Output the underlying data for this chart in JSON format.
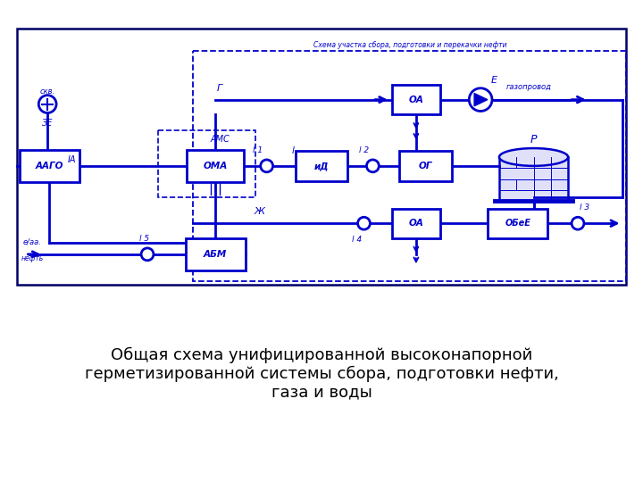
{
  "bg": "#ffffff",
  "dc": "#0000cc",
  "lw": 2.0,
  "title": "Общая схема унифицированной высоконапорной\nгерметизированной системы сбора, подготовки нефти,\nгаза и воды",
  "inner_title": "Схема участка сбора, подготовки и перекачки нефти",
  "labels": {
    "agzu": "ААГО",
    "oma": "ОМА",
    "id": "иД",
    "og": "ОГ",
    "sa_top": "ОА",
    "sa_bot": "ОА",
    "avn": "АБМ",
    "ove": "ОБеЕ",
    "well": "скв.",
    "ze": "ЗЕ",
    "ia": "ІА",
    "ams": "АМС",
    "l1": "l 1",
    "l2": "l 2",
    "l3": "l 3",
    "l4": "l 4",
    "l5": "l 5",
    "g_label": "Г",
    "zh_label": "Ж",
    "e_label": "Е",
    "r_label": "Р",
    "gazoprovod": "газопровод",
    "e_aa": "е/аа.",
    "neft": "нефть"
  }
}
